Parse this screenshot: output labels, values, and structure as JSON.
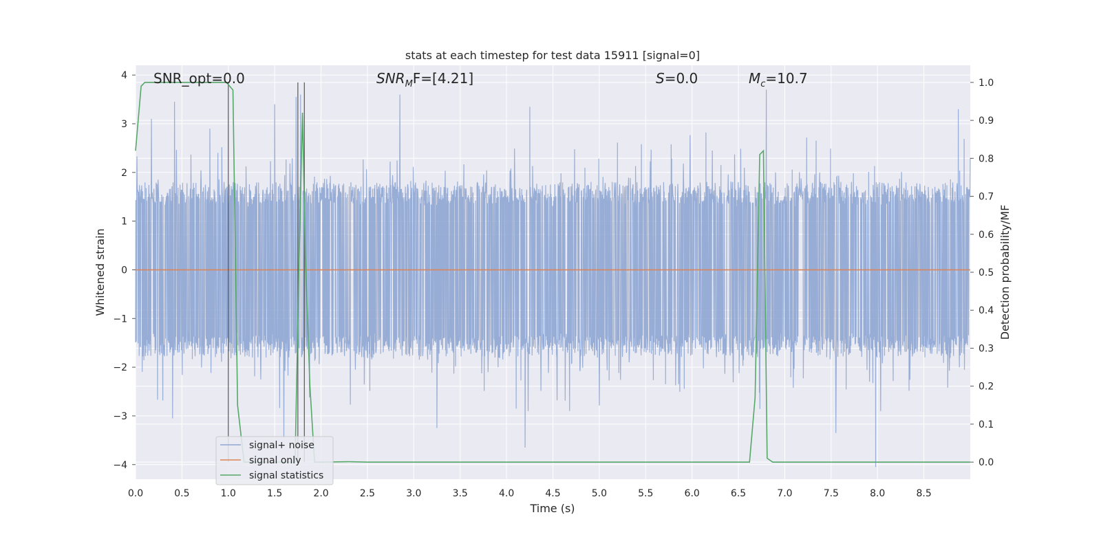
{
  "chart_data": {
    "type": "line",
    "title": "stats at each timestep for test data 15911 [signal=0]",
    "xlabel": "Time (s)",
    "ylabel": "Whitened strain",
    "ylabel_right": "Detection probability/MF",
    "xlim": [
      0.0,
      9.0
    ],
    "ylim": [
      -4.3,
      4.2
    ],
    "ylim_right": [
      -0.045,
      1.045
    ],
    "x_ticks": [
      "0.0",
      "0.5",
      "1.0",
      "1.5",
      "2.0",
      "2.5",
      "3.0",
      "3.5",
      "4.0",
      "4.5",
      "5.0",
      "5.5",
      "6.0",
      "6.5",
      "7.0",
      "7.5",
      "8.0",
      "8.5"
    ],
    "y_ticks": [
      "4",
      "3",
      "2",
      "1",
      "0",
      "−1",
      "−2",
      "−3",
      "−4"
    ],
    "y_right_ticks": [
      "1.0",
      "0.9",
      "0.8",
      "0.7",
      "0.6",
      "0.5",
      "0.4",
      "0.3",
      "0.2",
      "0.1",
      "0.0"
    ],
    "grid": true,
    "legend_position": "lower-left",
    "annotations": {
      "snr_opt": "SNR_opt=0.0",
      "snr_mf_prefix": "SNR",
      "snr_mf_sub": "M",
      "snr_mf_suffix": "F=[4.21]",
      "s_var": "S",
      "s_value": "=0.0",
      "mc_var": "M",
      "mc_sub": "c",
      "mc_value": "=10.7"
    },
    "vertical_markers": [
      1.0,
      1.75,
      1.82
    ],
    "series": [
      {
        "name": "signal+ noise",
        "color": "#8fa6d1",
        "axis": "left",
        "noise_amplitude_typical": 1.5,
        "peaks": [
          {
            "x": 0.42,
            "y": 3.45
          },
          {
            "x": 0.17,
            "y": 3.1
          },
          {
            "x": 1.5,
            "y": 3.4
          },
          {
            "x": 1.73,
            "y": 3.55
          },
          {
            "x": 1.78,
            "y": 3.6
          },
          {
            "x": 2.85,
            "y": 3.6
          },
          {
            "x": 4.25,
            "y": 3.35
          },
          {
            "x": 6.8,
            "y": 3.7
          },
          {
            "x": 9.0,
            "y": 2.3
          },
          {
            "x": 8.87,
            "y": 3.3
          },
          {
            "x": 0.4,
            "y": -3.05
          },
          {
            "x": 1.6,
            "y": -3.45
          },
          {
            "x": 3.25,
            "y": -3.25
          },
          {
            "x": 4.2,
            "y": -3.65
          },
          {
            "x": 7.55,
            "y": -3.35
          },
          {
            "x": 7.98,
            "y": -4.05
          }
        ]
      },
      {
        "name": "signal only",
        "color": "#dd8452",
        "axis": "left",
        "x": [
          0.0,
          9.0
        ],
        "y": [
          0.0,
          0.0
        ]
      },
      {
        "name": "signal statistics",
        "color": "#55a868",
        "axis": "right",
        "x": [
          0.0,
          0.06,
          0.1,
          0.2,
          0.3,
          0.5,
          0.7,
          0.9,
          0.98,
          1.05,
          1.1,
          1.17,
          1.25,
          1.72,
          1.76,
          1.8,
          1.83,
          1.88,
          1.93,
          2.0,
          2.3,
          2.5,
          3.0,
          4.0,
          5.0,
          6.0,
          6.55,
          6.62,
          6.68,
          6.73,
          6.77,
          6.81,
          6.87,
          7.0,
          8.0,
          9.0
        ],
        "y": [
          0.82,
          0.99,
          1.0,
          1.0,
          1.0,
          1.0,
          1.0,
          1.0,
          1.0,
          0.98,
          0.15,
          0.0,
          0.0,
          0.0,
          0.5,
          0.92,
          0.55,
          0.2,
          0.0,
          0.0,
          0.001,
          0.0,
          0.0,
          0.0,
          0.0,
          0.0,
          0.0,
          0.0,
          0.17,
          0.81,
          0.82,
          0.01,
          0.0,
          0.0,
          0.0,
          0.0
        ]
      }
    ]
  }
}
